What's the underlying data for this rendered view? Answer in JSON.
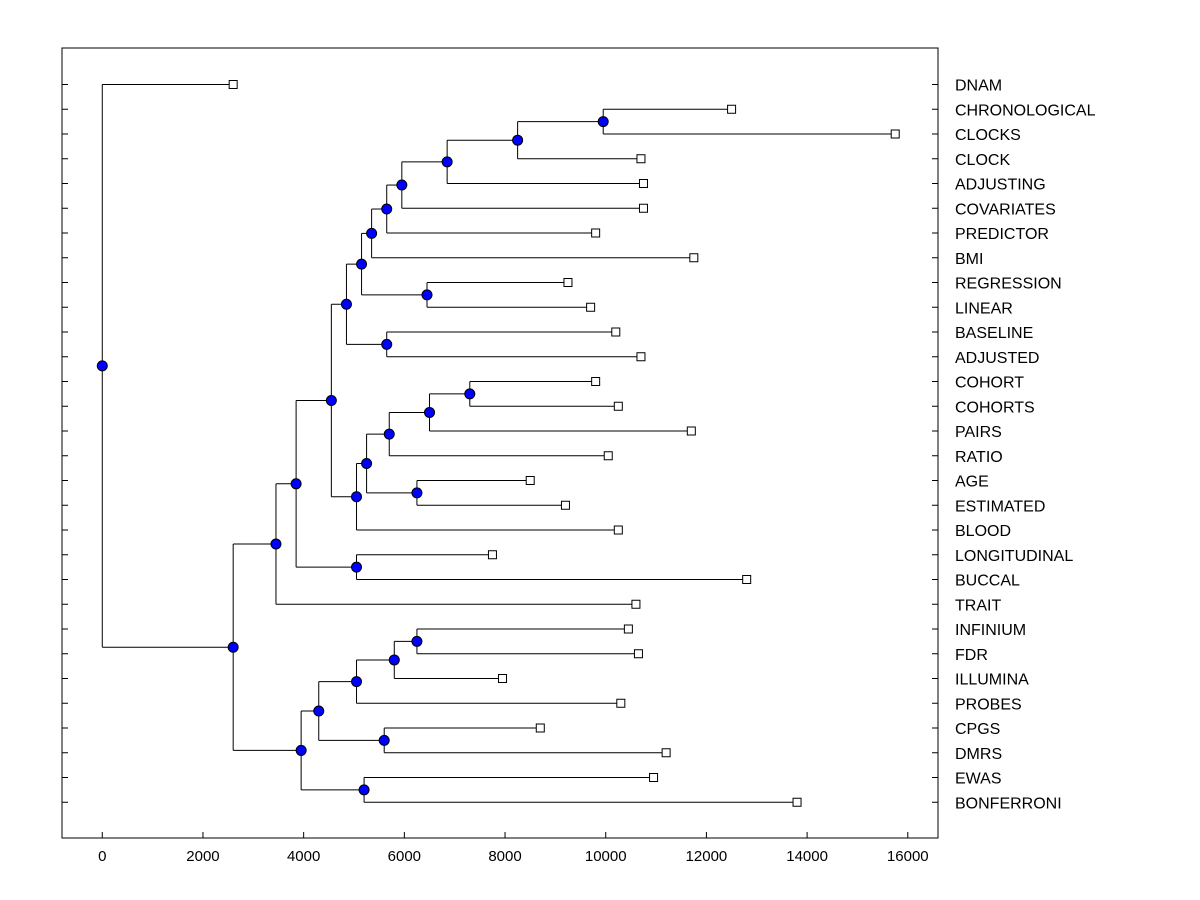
{
  "chart_data": {
    "type": "dendrogram",
    "orientation": "horizontal",
    "title": "",
    "xlabel": "",
    "ylabel": "",
    "xlim": [
      -800,
      16600
    ],
    "xticks": [
      0,
      2000,
      4000,
      6000,
      8000,
      10000,
      12000,
      14000,
      16000
    ],
    "leaves": [
      {
        "label": "DNAM",
        "x": 2600
      },
      {
        "label": "CHRONOLOGICAL",
        "x": 12500
      },
      {
        "label": "CLOCKS",
        "x": 15750
      },
      {
        "label": "CLOCK",
        "x": 10700
      },
      {
        "label": "ADJUSTING",
        "x": 10750
      },
      {
        "label": "COVARIATES",
        "x": 10750
      },
      {
        "label": "PREDICTOR",
        "x": 9800
      },
      {
        "label": "BMI",
        "x": 11750
      },
      {
        "label": "REGRESSION",
        "x": 9250
      },
      {
        "label": "LINEAR",
        "x": 9700
      },
      {
        "label": "BASELINE",
        "x": 10200
      },
      {
        "label": "ADJUSTED",
        "x": 10700
      },
      {
        "label": "COHORT",
        "x": 9800
      },
      {
        "label": "COHORTS",
        "x": 10250
      },
      {
        "label": "PAIRS",
        "x": 11700
      },
      {
        "label": "RATIO",
        "x": 10050
      },
      {
        "label": "AGE",
        "x": 8500
      },
      {
        "label": "ESTIMATED",
        "x": 9200
      },
      {
        "label": "BLOOD",
        "x": 10250
      },
      {
        "label": "LONGITUDINAL",
        "x": 7750
      },
      {
        "label": "BUCCAL",
        "x": 12800
      },
      {
        "label": "TRAIT",
        "x": 10600
      },
      {
        "label": "INFINIUM",
        "x": 10450
      },
      {
        "label": "FDR",
        "x": 10650
      },
      {
        "label": "ILLUMINA",
        "x": 7950
      },
      {
        "label": "PROBES",
        "x": 10300
      },
      {
        "label": "CPGS",
        "x": 8700
      },
      {
        "label": "DMRS",
        "x": 11200
      },
      {
        "label": "EWAS",
        "x": 10950
      },
      {
        "label": "BONFERRONI",
        "x": 13800
      }
    ],
    "internal_nodes": [
      {
        "id": "n1",
        "x": 9950,
        "children": [
          "L1",
          "L2"
        ]
      },
      {
        "id": "n2",
        "x": 8250,
        "children": [
          "n1",
          "L3"
        ]
      },
      {
        "id": "n3",
        "x": 6850,
        "children": [
          "n2",
          "L4"
        ]
      },
      {
        "id": "n4",
        "x": 5950,
        "children": [
          "n3",
          "L5"
        ]
      },
      {
        "id": "n5",
        "x": 5650,
        "children": [
          "n4",
          "L6"
        ]
      },
      {
        "id": "n6",
        "x": 5350,
        "children": [
          "n5",
          "L7"
        ]
      },
      {
        "id": "n7",
        "x": 6450,
        "children": [
          "L8",
          "L9"
        ]
      },
      {
        "id": "n8",
        "x": 5150,
        "children": [
          "n6",
          "n7"
        ]
      },
      {
        "id": "n9",
        "x": 5650,
        "children": [
          "L10",
          "L11"
        ]
      },
      {
        "id": "n10",
        "x": 4850,
        "children": [
          "n8",
          "n9"
        ]
      },
      {
        "id": "n11",
        "x": 7300,
        "children": [
          "L12",
          "L13"
        ]
      },
      {
        "id": "n12",
        "x": 6500,
        "children": [
          "n11",
          "L14"
        ]
      },
      {
        "id": "n13",
        "x": 5700,
        "children": [
          "n12",
          "L15"
        ]
      },
      {
        "id": "n14",
        "x": 6250,
        "children": [
          "L16",
          "L17"
        ]
      },
      {
        "id": "n15",
        "x": 5250,
        "children": [
          "n13",
          "n14"
        ]
      },
      {
        "id": "n16",
        "x": 5050,
        "children": [
          "n15",
          "L18"
        ]
      },
      {
        "id": "n17",
        "x": 4550,
        "children": [
          "n10",
          "n16"
        ]
      },
      {
        "id": "n18",
        "x": 5050,
        "children": [
          "L19",
          "L20"
        ]
      },
      {
        "id": "n19",
        "x": 3850,
        "children": [
          "n17",
          "n18"
        ]
      },
      {
        "id": "n20",
        "x": 3450,
        "children": [
          "n19",
          "L21"
        ]
      },
      {
        "id": "n21",
        "x": 6250,
        "children": [
          "L22",
          "L23"
        ]
      },
      {
        "id": "n22",
        "x": 5800,
        "children": [
          "n21",
          "L24"
        ]
      },
      {
        "id": "n23",
        "x": 5050,
        "children": [
          "n22",
          "L25"
        ]
      },
      {
        "id": "n24",
        "x": 5600,
        "children": [
          "L26",
          "L27"
        ]
      },
      {
        "id": "n25",
        "x": 4300,
        "children": [
          "n23",
          "n24"
        ]
      },
      {
        "id": "n26",
        "x": 5200,
        "children": [
          "L28",
          "L29"
        ]
      },
      {
        "id": "n27",
        "x": 3950,
        "children": [
          "n25",
          "n26"
        ]
      },
      {
        "id": "n28",
        "x": 2600,
        "children": [
          "n20",
          "n27"
        ]
      },
      {
        "id": "n29",
        "x": 0,
        "children": [
          "L0",
          "n28"
        ]
      }
    ],
    "grid": false,
    "legend": "none",
    "colors": {
      "internal_node": "#0000ff",
      "leaf_marker": "#ffffff",
      "line": "#000000"
    }
  }
}
